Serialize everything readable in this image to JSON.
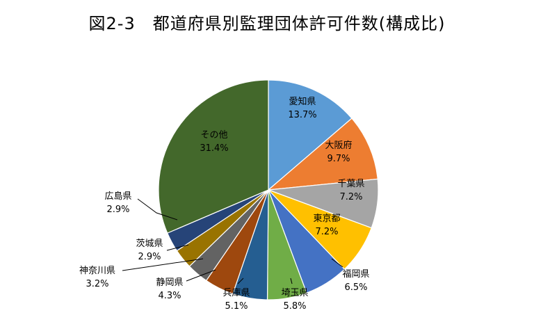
{
  "chart_data": {
    "type": "pie",
    "title": "図2-3　都道府県別監理団体許可件数(構成比)",
    "slices": [
      {
        "name": "愛知県",
        "value": 13.7,
        "label": "13.7%",
        "color": "#5B9BD5"
      },
      {
        "name": "大阪府",
        "value": 9.7,
        "label": "9.7%",
        "color": "#ED7D31"
      },
      {
        "name": "千葉県",
        "value": 7.2,
        "label": "7.2%",
        "color": "#A5A5A5"
      },
      {
        "name": "東京都",
        "value": 7.2,
        "label": "7.2%",
        "color": "#FFC000"
      },
      {
        "name": "福岡県",
        "value": 6.5,
        "label": "6.5%",
        "color": "#4472C4"
      },
      {
        "name": "埼玉県",
        "value": 5.8,
        "label": "5.8%",
        "color": "#70AD47"
      },
      {
        "name": "兵庫県",
        "value": 5.1,
        "label": "5.1%",
        "color": "#255E91"
      },
      {
        "name": "静岡県",
        "value": 4.3,
        "label": "4.3%",
        "color": "#9E480E"
      },
      {
        "name": "神奈川県",
        "value": 3.2,
        "label": "3.2%",
        "color": "#636363"
      },
      {
        "name": "茨城県",
        "value": 2.9,
        "label": "2.9%",
        "color": "#997300"
      },
      {
        "name": "広島県",
        "value": 2.9,
        "label": "2.9%",
        "color": "#264478"
      },
      {
        "name": "その他",
        "value": 31.4,
        "label": "31.4%",
        "color": "#43682B"
      }
    ],
    "legend": "none",
    "start_angle": "12 o'clock, clockwise"
  }
}
